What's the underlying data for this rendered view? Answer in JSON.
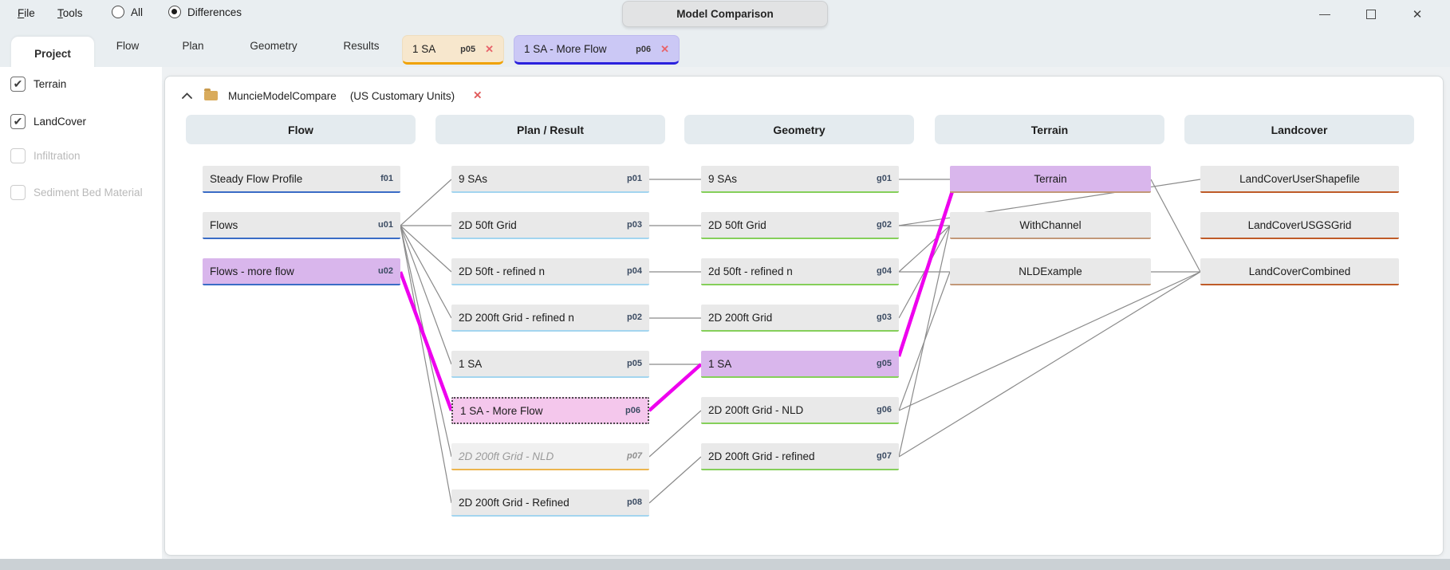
{
  "window": {
    "title": "Model Comparison",
    "menus": [
      {
        "label": "File"
      },
      {
        "label": "Tools"
      }
    ],
    "view_options": [
      {
        "label": "All",
        "selected": false
      },
      {
        "label": "Differences",
        "selected": true
      }
    ],
    "controls": {
      "minimize": "minimize",
      "maximize": "maximize",
      "close": "close"
    }
  },
  "tabs": {
    "items": [
      {
        "label": "Project",
        "active": true
      },
      {
        "label": "Flow",
        "active": false
      },
      {
        "label": "Plan",
        "active": false
      },
      {
        "label": "Geometry",
        "active": false
      },
      {
        "label": "Results",
        "active": false
      }
    ]
  },
  "chips": {
    "items": [
      {
        "label": "1 SA",
        "badge": "p05",
        "close": "✕",
        "bg": "#f7e7cd",
        "border": "#eedebf",
        "underline": "#f0a202"
      },
      {
        "label": "1 SA - More Flow",
        "badge": "p06",
        "close": "✕",
        "bg": "#cbc8f5",
        "border": "#bdb9ee",
        "underline": "#2a21dd"
      }
    ]
  },
  "sidebar": {
    "items": [
      {
        "label": "Terrain",
        "checked": true,
        "enabled": true
      },
      {
        "label": "LandCover",
        "checked": true,
        "enabled": true
      },
      {
        "label": "Infiltration",
        "checked": false,
        "enabled": false
      },
      {
        "label": "Sediment Bed Material",
        "checked": false,
        "enabled": false
      }
    ]
  },
  "panel": {
    "project_name": "MuncieModelCompare",
    "units": "(US Customary Units)",
    "close": "✕",
    "collapse": "chevron-up"
  },
  "diagram": {
    "columns": [
      {
        "key": "flow",
        "label": "Flow",
        "border": "#3a6cc6"
      },
      {
        "key": "plan",
        "label": "Plan / Result",
        "border": "#a3d5ef"
      },
      {
        "key": "geometry",
        "label": "Geometry",
        "border": "#85cf5a"
      },
      {
        "key": "terrain",
        "label": "Terrain",
        "border": "#c29878"
      },
      {
        "key": "landcover",
        "label": "Landcover",
        "border": "#bf5b28"
      }
    ],
    "nodes": [
      {
        "id": "f01",
        "col": 0,
        "row": 0,
        "label": "Steady Flow Profile",
        "badge": "f01",
        "variant": "plain"
      },
      {
        "id": "u01",
        "col": 0,
        "row": 1,
        "label": "Flows",
        "badge": "u01",
        "variant": "plain"
      },
      {
        "id": "u02",
        "col": 0,
        "row": 2,
        "label": "Flows - more flow",
        "badge": "u02",
        "variant": "highlight"
      },
      {
        "id": "p01",
        "col": 1,
        "row": 0,
        "label": "9 SAs",
        "badge": "p01",
        "variant": "plain"
      },
      {
        "id": "p03",
        "col": 1,
        "row": 1,
        "label": "2D 50ft Grid",
        "badge": "p03",
        "variant": "plain"
      },
      {
        "id": "p04",
        "col": 1,
        "row": 2,
        "label": "2D 50ft - refined n",
        "badge": "p04",
        "variant": "plain"
      },
      {
        "id": "p02",
        "col": 1,
        "row": 3,
        "label": "2D 200ft Grid - refined n",
        "badge": "p02",
        "variant": "plain"
      },
      {
        "id": "p05",
        "col": 1,
        "row": 4,
        "label": "1 SA",
        "badge": "p05",
        "variant": "plain"
      },
      {
        "id": "p06",
        "col": 1,
        "row": 5,
        "label": "1 SA - More Flow",
        "badge": "p06",
        "variant": "selected"
      },
      {
        "id": "p07",
        "col": 1,
        "row": 6,
        "label": "2D 200ft Grid - NLD",
        "badge": "p07",
        "variant": "muted",
        "border_override": "#ecb54e"
      },
      {
        "id": "p08",
        "col": 1,
        "row": 7,
        "label": "2D 200ft Grid - Refined",
        "badge": "p08",
        "variant": "plain"
      },
      {
        "id": "g01",
        "col": 2,
        "row": 0,
        "label": "9 SAs",
        "badge": "g01",
        "variant": "plain"
      },
      {
        "id": "g02",
        "col": 2,
        "row": 1,
        "label": "2D 50ft Grid",
        "badge": "g02",
        "variant": "plain"
      },
      {
        "id": "g04",
        "col": 2,
        "row": 2,
        "label": "2d 50ft - refined n",
        "badge": "g04",
        "variant": "plain"
      },
      {
        "id": "g03",
        "col": 2,
        "row": 3,
        "label": "2D 200ft Grid",
        "badge": "g03",
        "variant": "plain"
      },
      {
        "id": "g05",
        "col": 2,
        "row": 4,
        "label": "1 SA",
        "badge": "g05",
        "variant": "highlight"
      },
      {
        "id": "g06",
        "col": 2,
        "row": 5,
        "label": "2D 200ft Grid - NLD",
        "badge": "g06",
        "variant": "plain"
      },
      {
        "id": "g07",
        "col": 2,
        "row": 6,
        "label": "2D 200ft Grid - refined",
        "badge": "g07",
        "variant": "plain"
      },
      {
        "id": "t01",
        "col": 3,
        "row": 0,
        "label": "Terrain",
        "badge": "",
        "variant": "highlight",
        "align": "center"
      },
      {
        "id": "t02",
        "col": 3,
        "row": 1,
        "label": "WithChannel",
        "badge": "",
        "variant": "plain",
        "align": "center"
      },
      {
        "id": "t03",
        "col": 3,
        "row": 2,
        "label": "NLDExample",
        "badge": "",
        "variant": "plain",
        "align": "center"
      },
      {
        "id": "l01",
        "col": 4,
        "row": 0,
        "label": "LandCoverUserShapefile",
        "badge": "",
        "variant": "plain",
        "align": "center"
      },
      {
        "id": "l02",
        "col": 4,
        "row": 1,
        "label": "LandCoverUSGSGrid",
        "badge": "",
        "variant": "plain",
        "align": "center"
      },
      {
        "id": "l03",
        "col": 4,
        "row": 2,
        "label": "LandCoverCombined",
        "badge": "",
        "variant": "plain",
        "align": "center"
      }
    ],
    "edges": [
      {
        "from": "u01",
        "to": "p01"
      },
      {
        "from": "u01",
        "to": "p03"
      },
      {
        "from": "u01",
        "to": "p04"
      },
      {
        "from": "u01",
        "to": "p02"
      },
      {
        "from": "u01",
        "to": "p05"
      },
      {
        "from": "u01",
        "to": "p07"
      },
      {
        "from": "u01",
        "to": "p08"
      },
      {
        "from": "p01",
        "to": "g01"
      },
      {
        "from": "p03",
        "to": "g02"
      },
      {
        "from": "p04",
        "to": "g04"
      },
      {
        "from": "p02",
        "to": "g03"
      },
      {
        "from": "p05",
        "to": "g05"
      },
      {
        "from": "p07",
        "to": "g06"
      },
      {
        "from": "p08",
        "to": "g07"
      },
      {
        "from": "g01",
        "to": "t01"
      },
      {
        "from": "g02",
        "to": "t02"
      },
      {
        "from": "g04",
        "to": "t02"
      },
      {
        "from": "g03",
        "to": "t02"
      },
      {
        "from": "g07",
        "to": "t02"
      },
      {
        "from": "g06",
        "to": "t03"
      },
      {
        "from": "g02",
        "to": "l01"
      },
      {
        "from": "g04",
        "to": "l03"
      },
      {
        "from": "g06",
        "to": "l03"
      },
      {
        "from": "g07",
        "to": "l03"
      },
      {
        "from": "t01",
        "to": "l03"
      },
      {
        "from": "u02",
        "to": "p06",
        "highlight": true
      },
      {
        "from": "p06",
        "to": "g05",
        "highlight": true
      },
      {
        "from": "g05",
        "to": "t01",
        "highlight": true,
        "from_anchor": "right-top",
        "to_anchor": "left-bottom"
      }
    ],
    "colors": {
      "edge": "#8a8a8a",
      "edge_highlight": "#ee00ee",
      "node_bg": "#e9e9e9",
      "node_highlight_bg": "#d9b6ec",
      "node_selected_bg": "#f4c7ec",
      "muted_border": "#ecb54e"
    }
  }
}
